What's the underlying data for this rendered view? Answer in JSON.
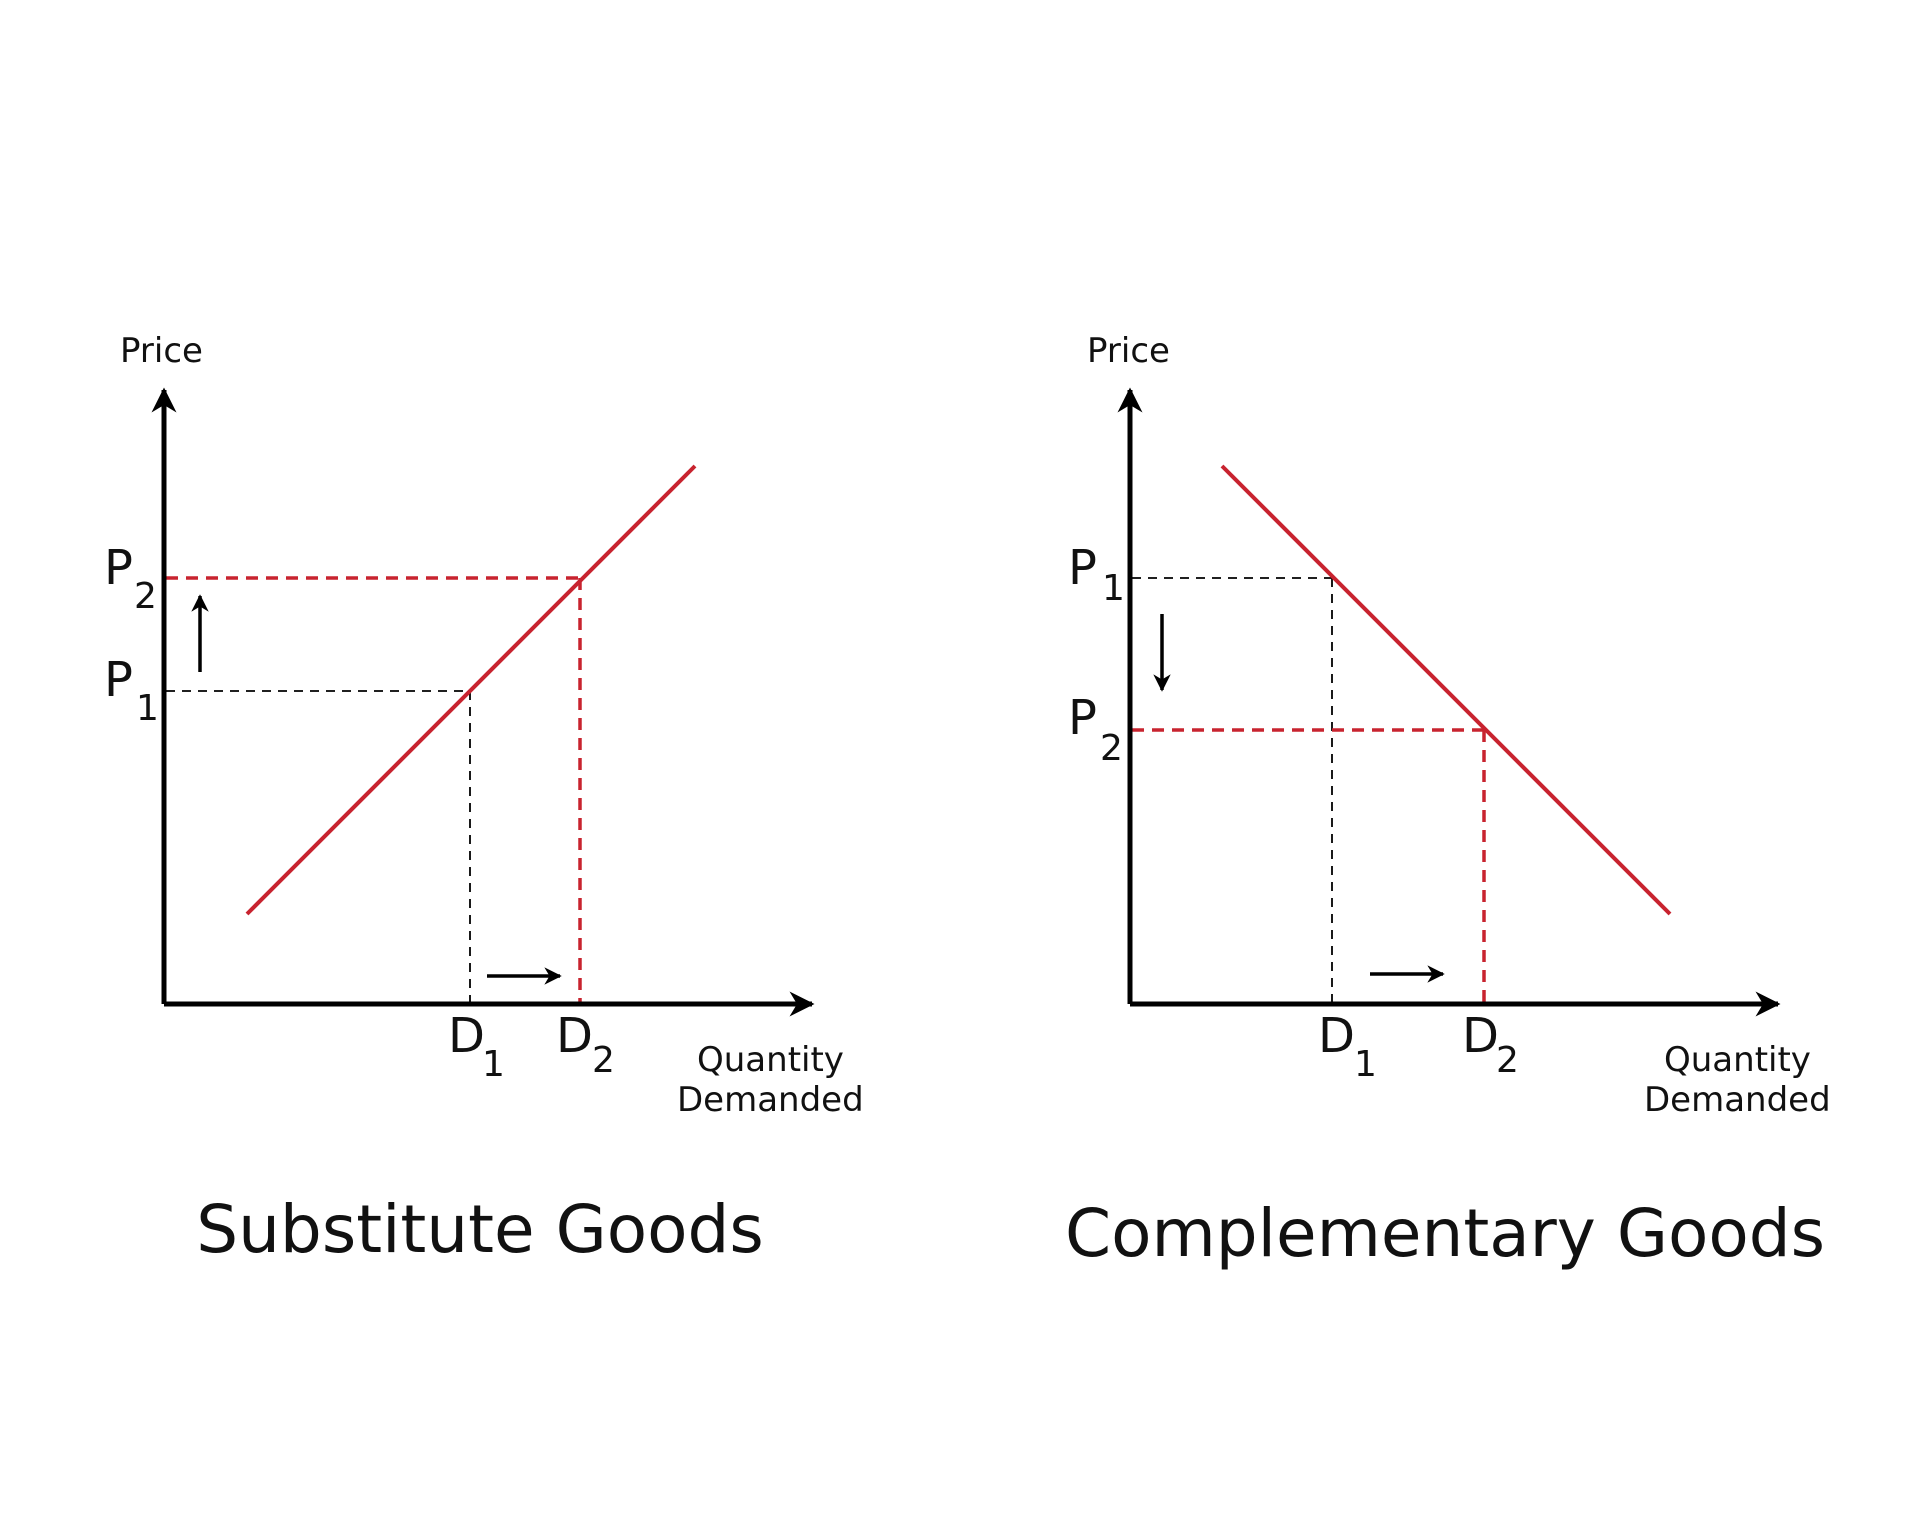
{
  "panels": [
    {
      "title": "Substitute Goods",
      "y_axis_label": "Price",
      "x_axis_label_line1": "Quantity",
      "x_axis_label_line2": "Demanded",
      "p_first": {
        "letter": "P",
        "sub": "2"
      },
      "p_second": {
        "letter": "P",
        "sub": "1"
      },
      "d_first": {
        "letter": "D",
        "sub": "1"
      },
      "d_second": {
        "letter": "D",
        "sub": "2"
      },
      "curve": "upward-sloping",
      "price_arrow": "up",
      "quantity_arrow": "right"
    },
    {
      "title": "Complementary Goods",
      "y_axis_label": "Price",
      "x_axis_label_line1": "Quantity",
      "x_axis_label_line2": "Demanded",
      "p_first": {
        "letter": "P",
        "sub": "1"
      },
      "p_second": {
        "letter": "P",
        "sub": "2"
      },
      "d_first": {
        "letter": "D",
        "sub": "1"
      },
      "d_second": {
        "letter": "D",
        "sub": "2"
      },
      "curve": "downward-sloping",
      "price_arrow": "down",
      "quantity_arrow": "right"
    }
  ],
  "colors": {
    "curve": "#c8232f",
    "axis": "#000000",
    "guide": "#000000",
    "background": "#ffffff"
  }
}
